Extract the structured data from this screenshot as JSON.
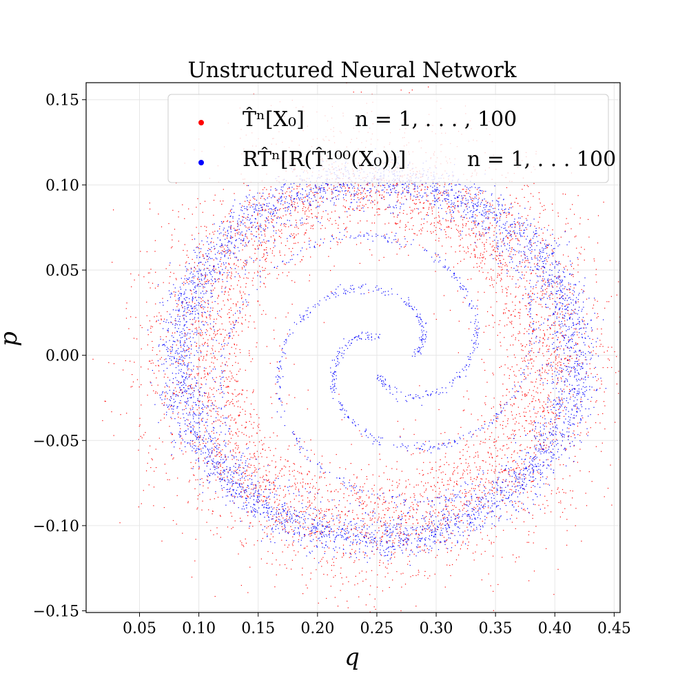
{
  "chart_data": {
    "type": "scatter",
    "title": "Unstructured Neural Network",
    "xlabel": "q",
    "ylabel": "p",
    "xlim": [
      0.005,
      0.455
    ],
    "ylim": [
      -0.151,
      0.16
    ],
    "xticks": [
      "0.05",
      "0.10",
      "0.15",
      "0.20",
      "0.25",
      "0.30",
      "0.35",
      "0.40",
      "0.45"
    ],
    "yticks": [
      "−0.15",
      "−0.10",
      "−0.05",
      "0.00",
      "0.05",
      "0.10",
      "0.15"
    ],
    "xtick_values": [
      0.05,
      0.1,
      0.15,
      0.2,
      0.25,
      0.3,
      0.35,
      0.4,
      0.45
    ],
    "ytick_values": [
      -0.15,
      -0.1,
      -0.05,
      0.0,
      0.05,
      0.1,
      0.15
    ],
    "grid": true,
    "legend_position": "top-right",
    "series": [
      {
        "name": "T̂ⁿ[X₀]      n = 1, . . . , 100",
        "legend": {
          "main": "T̂ⁿ[X₀]",
          "range": "n = 1, . . . , 100"
        },
        "color": "#ff0000",
        "shape": "diffuse ring",
        "center": [
          0.248,
          0.0
        ],
        "radius_q": 0.16,
        "radius_p": 0.108,
        "spread": 0.022,
        "count": 5200
      },
      {
        "name": "RT̂ⁿ[R(T̂¹⁰⁰(X₀))]      n = 1, . . . 100",
        "legend": {
          "main": "RT̂ⁿ[R(T̂¹⁰⁰(X₀))]",
          "range": "n = 1, . . . 100"
        },
        "color": "#0000ff",
        "shape": "thin ring with inner spiral trajectories",
        "center": [
          0.24,
          -0.002
        ],
        "radius_q": 0.168,
        "radius_p": 0.106,
        "spread": 0.006,
        "count": 5200
      }
    ]
  }
}
